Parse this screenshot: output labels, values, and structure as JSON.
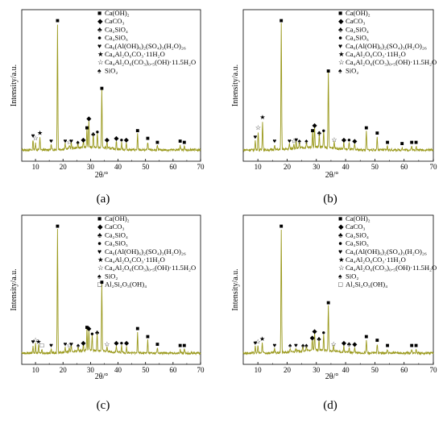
{
  "figure": {
    "panel_labels": [
      "(a)",
      "(b)",
      "(c)",
      "(d)"
    ]
  },
  "chart_data": [
    {
      "type": "line",
      "panel": "(a)",
      "xlabel": "2θ/°",
      "ylabel": "Intensity/a.u.",
      "xlim": [
        5,
        70
      ],
      "xticks": [
        10,
        20,
        30,
        40,
        50,
        60,
        70
      ],
      "ylim": [
        0,
        100
      ],
      "line_color": "#9b9a1e",
      "legend_position": "top-right",
      "legend": [
        {
          "symbol": "■",
          "label": "Ca(OH)₂"
        },
        {
          "symbol": "◆",
          "label": "CaCO₃"
        },
        {
          "symbol": "♣",
          "label": "Ca₂SiO₄"
        },
        {
          "symbol": "●",
          "label": "Ca₃SiO₅"
        },
        {
          "symbol": "♥",
          "label": "Ca₆(Al(OH)₆)₂(SO₄)₃(H₂O)₂₆"
        },
        {
          "symbol": "★",
          "label": "Ca₄Al₂O₆CO₃·11H₂O"
        },
        {
          "symbol": "☆",
          "label": "Ca₄Al₂O₆(CO₃)₀.₅(OH)·11.5H₂O"
        },
        {
          "symbol": "♠",
          "label": "SiO₂"
        }
      ],
      "peaks": [
        {
          "x": 9.1,
          "y": 8
        },
        {
          "x": 10.0,
          "y": 6
        },
        {
          "x": 11.6,
          "y": 10
        },
        {
          "x": 15.7,
          "y": 4
        },
        {
          "x": 18.0,
          "y": 95
        },
        {
          "x": 20.8,
          "y": 4
        },
        {
          "x": 22.3,
          "y": 3
        },
        {
          "x": 23.0,
          "y": 4
        },
        {
          "x": 25.4,
          "y": 3
        },
        {
          "x": 27.4,
          "y": 5
        },
        {
          "x": 28.7,
          "y": 14
        },
        {
          "x": 29.4,
          "y": 21
        },
        {
          "x": 31.0,
          "y": 9
        },
        {
          "x": 32.5,
          "y": 11
        },
        {
          "x": 34.1,
          "y": 44
        },
        {
          "x": 36.0,
          "y": 5
        },
        {
          "x": 39.4,
          "y": 6
        },
        {
          "x": 41.3,
          "y": 5
        },
        {
          "x": 43.0,
          "y": 5
        },
        {
          "x": 47.1,
          "y": 12
        },
        {
          "x": 50.8,
          "y": 6
        },
        {
          "x": 54.3,
          "y": 3
        },
        {
          "x": 62.6,
          "y": 4
        },
        {
          "x": 64.1,
          "y": 3
        }
      ],
      "markers": [
        {
          "x": 9.1,
          "symbol": "♥"
        },
        {
          "x": 10.0,
          "symbol": "☆"
        },
        {
          "x": 11.6,
          "symbol": "★"
        },
        {
          "x": 15.7,
          "symbol": "♥"
        },
        {
          "x": 18.0,
          "symbol": "■"
        },
        {
          "x": 20.8,
          "symbol": "♥"
        },
        {
          "x": 22.3,
          "symbol": "☆"
        },
        {
          "x": 23.0,
          "symbol": "♥"
        },
        {
          "x": 25.4,
          "symbol": "♠"
        },
        {
          "x": 27.4,
          "symbol": "◆"
        },
        {
          "x": 28.7,
          "symbol": "■"
        },
        {
          "x": 29.4,
          "symbol": "◆"
        },
        {
          "x": 31.0,
          "symbol": "♣"
        },
        {
          "x": 32.5,
          "symbol": "●"
        },
        {
          "x": 34.1,
          "symbol": "■"
        },
        {
          "x": 36.0,
          "symbol": "◆"
        },
        {
          "x": 39.4,
          "symbol": "◆"
        },
        {
          "x": 41.3,
          "symbol": "●"
        },
        {
          "x": 43.0,
          "symbol": "◆"
        },
        {
          "x": 47.1,
          "symbol": "■"
        },
        {
          "x": 50.8,
          "symbol": "■"
        },
        {
          "x": 54.3,
          "symbol": "■"
        },
        {
          "x": 62.6,
          "symbol": "■"
        },
        {
          "x": 64.1,
          "symbol": "■"
        }
      ]
    },
    {
      "type": "line",
      "panel": "(b)",
      "xlabel": "2θ/°",
      "ylabel": "Intensity/a.u.",
      "xlim": [
        5,
        70
      ],
      "xticks": [
        10,
        20,
        30,
        40,
        50,
        60,
        70
      ],
      "ylim": [
        0,
        100
      ],
      "line_color": "#9b9a1e",
      "legend_position": "top-right",
      "legend": [
        {
          "symbol": "■",
          "label": "Ca(OH)₂"
        },
        {
          "symbol": "◆",
          "label": "CaCO₃"
        },
        {
          "symbol": "♣",
          "label": "Ca₂SiO₄"
        },
        {
          "symbol": "●",
          "label": "Ca₃SiO₅"
        },
        {
          "symbol": "♥",
          "label": "Ca₆(Al(OH)₆)₂(SO₄)₃(H₂O)₂₆"
        },
        {
          "symbol": "★",
          "label": "Ca₄Al₂O₆CO₃·11H₂O"
        },
        {
          "symbol": "☆",
          "label": "Ca₄Al₂O₆(CO₃)₀.₅(OH)·11.5H₂O"
        },
        {
          "symbol": "♠",
          "label": "SiO₂"
        }
      ],
      "peaks": [
        {
          "x": 9.1,
          "y": 7
        },
        {
          "x": 10.1,
          "y": 14
        },
        {
          "x": 11.6,
          "y": 22
        },
        {
          "x": 15.7,
          "y": 4
        },
        {
          "x": 18.0,
          "y": 95
        },
        {
          "x": 20.8,
          "y": 4
        },
        {
          "x": 22.3,
          "y": 4
        },
        {
          "x": 23.1,
          "y": 5
        },
        {
          "x": 24.2,
          "y": 4
        },
        {
          "x": 26.6,
          "y": 4
        },
        {
          "x": 28.7,
          "y": 12
        },
        {
          "x": 29.4,
          "y": 16
        },
        {
          "x": 31.0,
          "y": 10
        },
        {
          "x": 32.5,
          "y": 12
        },
        {
          "x": 34.1,
          "y": 57
        },
        {
          "x": 36.1,
          "y": 5
        },
        {
          "x": 39.4,
          "y": 5
        },
        {
          "x": 41.2,
          "y": 5
        },
        {
          "x": 43.1,
          "y": 4
        },
        {
          "x": 47.1,
          "y": 14
        },
        {
          "x": 50.8,
          "y": 10
        },
        {
          "x": 54.3,
          "y": 3
        },
        {
          "x": 59.3,
          "y": 2
        },
        {
          "x": 62.6,
          "y": 3
        },
        {
          "x": 64.1,
          "y": 3
        }
      ],
      "markers": [
        {
          "x": 9.1,
          "symbol": "♥"
        },
        {
          "x": 10.1,
          "symbol": "☆"
        },
        {
          "x": 11.6,
          "symbol": "★"
        },
        {
          "x": 15.7,
          "symbol": "♥"
        },
        {
          "x": 18.0,
          "symbol": "■"
        },
        {
          "x": 20.8,
          "symbol": "♥"
        },
        {
          "x": 22.3,
          "symbol": "☆"
        },
        {
          "x": 23.1,
          "symbol": "♥"
        },
        {
          "x": 24.2,
          "symbol": "♠"
        },
        {
          "x": 26.6,
          "symbol": "♠"
        },
        {
          "x": 28.7,
          "symbol": "■"
        },
        {
          "x": 29.4,
          "symbol": "◆"
        },
        {
          "x": 31.0,
          "symbol": "♣"
        },
        {
          "x": 32.5,
          "symbol": "●"
        },
        {
          "x": 34.1,
          "symbol": "■"
        },
        {
          "x": 36.1,
          "symbol": "☆"
        },
        {
          "x": 39.4,
          "symbol": "◆"
        },
        {
          "x": 41.2,
          "symbol": "●"
        },
        {
          "x": 43.1,
          "symbol": "◆"
        },
        {
          "x": 47.1,
          "symbol": "■"
        },
        {
          "x": 50.8,
          "symbol": "■"
        },
        {
          "x": 54.3,
          "symbol": "■"
        },
        {
          "x": 59.3,
          "symbol": "■"
        },
        {
          "x": 62.6,
          "symbol": "■"
        },
        {
          "x": 64.1,
          "symbol": "■"
        }
      ]
    },
    {
      "type": "line",
      "panel": "(c)",
      "xlabel": "2θ/°",
      "ylabel": "Intensity/a.u.",
      "xlim": [
        5,
        70
      ],
      "xticks": [
        10,
        20,
        30,
        40,
        50,
        60,
        70
      ],
      "ylim": [
        0,
        100
      ],
      "line_color": "#9b9a1e",
      "legend_position": "top-right",
      "legend": [
        {
          "symbol": "■",
          "label": "Ca(OH)₂"
        },
        {
          "symbol": "◆",
          "label": "CaCO₃"
        },
        {
          "symbol": "♣",
          "label": "Ca₂SiO₄"
        },
        {
          "symbol": "●",
          "label": "Ca₃SiO₅"
        },
        {
          "symbol": "♥",
          "label": "Ca₆(Al(OH)₆)₂(SO₄)₃(H₂O)₂₆"
        },
        {
          "symbol": "★",
          "label": "Ca₄Al₂O₆CO₃·11H₂O"
        },
        {
          "symbol": "☆",
          "label": "Ca₄Al₂O₆(CO₃)₀.₅(OH)·11.5H₂O"
        },
        {
          "symbol": "♠",
          "label": "SiO₂"
        },
        {
          "symbol": "□",
          "label": "Al₂Si₂O₅(OH)₄"
        }
      ],
      "peaks": [
        {
          "x": 9.1,
          "y": 6
        },
        {
          "x": 10.0,
          "y": 7
        },
        {
          "x": 11.1,
          "y": 6
        },
        {
          "x": 12.3,
          "y": 3
        },
        {
          "x": 15.7,
          "y": 3
        },
        {
          "x": 18.0,
          "y": 95
        },
        {
          "x": 20.8,
          "y": 4
        },
        {
          "x": 22.3,
          "y": 3
        },
        {
          "x": 23.0,
          "y": 4
        },
        {
          "x": 25.5,
          "y": 3
        },
        {
          "x": 27.4,
          "y": 5
        },
        {
          "x": 28.7,
          "y": 17
        },
        {
          "x": 29.4,
          "y": 16
        },
        {
          "x": 30.6,
          "y": 12
        },
        {
          "x": 32.4,
          "y": 13
        },
        {
          "x": 34.1,
          "y": 52
        },
        {
          "x": 36.0,
          "y": 4
        },
        {
          "x": 39.4,
          "y": 5
        },
        {
          "x": 41.3,
          "y": 5
        },
        {
          "x": 43.1,
          "y": 5
        },
        {
          "x": 47.1,
          "y": 16
        },
        {
          "x": 50.8,
          "y": 10
        },
        {
          "x": 54.3,
          "y": 4
        },
        {
          "x": 62.6,
          "y": 3
        },
        {
          "x": 64.1,
          "y": 3
        }
      ],
      "markers": [
        {
          "x": 9.1,
          "symbol": "♥"
        },
        {
          "x": 10.0,
          "symbol": "☆"
        },
        {
          "x": 11.1,
          "symbol": "★"
        },
        {
          "x": 12.3,
          "symbol": "□"
        },
        {
          "x": 15.7,
          "symbol": "♥"
        },
        {
          "x": 18.0,
          "symbol": "■"
        },
        {
          "x": 20.8,
          "symbol": "♥"
        },
        {
          "x": 22.3,
          "symbol": "☆"
        },
        {
          "x": 23.0,
          "symbol": "♥"
        },
        {
          "x": 25.5,
          "symbol": "♠"
        },
        {
          "x": 27.4,
          "symbol": "◆"
        },
        {
          "x": 28.7,
          "symbol": "■"
        },
        {
          "x": 29.4,
          "symbol": "◆"
        },
        {
          "x": 30.6,
          "symbol": "●"
        },
        {
          "x": 32.4,
          "symbol": "♣"
        },
        {
          "x": 34.1,
          "symbol": "■"
        },
        {
          "x": 36.0,
          "symbol": "☆"
        },
        {
          "x": 39.4,
          "symbol": "◆"
        },
        {
          "x": 41.3,
          "symbol": "●"
        },
        {
          "x": 43.1,
          "symbol": "◆"
        },
        {
          "x": 47.1,
          "symbol": "■"
        },
        {
          "x": 50.8,
          "symbol": "■"
        },
        {
          "x": 54.3,
          "symbol": "■"
        },
        {
          "x": 62.6,
          "symbol": "■"
        },
        {
          "x": 64.1,
          "symbol": "■"
        }
      ]
    },
    {
      "type": "line",
      "panel": "(d)",
      "xlabel": "2θ/°",
      "ylabel": "Intensity/a.u.",
      "xlim": [
        5,
        70
      ],
      "xticks": [
        10,
        20,
        30,
        40,
        50,
        60,
        70
      ],
      "ylim": [
        0,
        100
      ],
      "line_color": "#9b9a1e",
      "legend_position": "top-right",
      "legend": [
        {
          "symbol": "■",
          "label": "Ca(OH)₂"
        },
        {
          "symbol": "◆",
          "label": "CaCO₃"
        },
        {
          "symbol": "♣",
          "label": "Ca₂SiO₄"
        },
        {
          "symbol": "●",
          "label": "Ca₃SiO₅"
        },
        {
          "symbol": "♥",
          "label": "Ca₆(Al(OH)₆)₂(SO₄)₃(H₂O)₂₆"
        },
        {
          "symbol": "★",
          "label": "Ca₄Al₂O₆CO₃·11H₂O"
        },
        {
          "symbol": "☆",
          "label": "Ca₄Al₂O₆(CO₃)₀.₅(OH)·11.5H₂O"
        },
        {
          "symbol": "♠",
          "label": "SiO₂"
        },
        {
          "symbol": "□",
          "label": "Al₂Si₂O₅(OH)₄"
        }
      ],
      "peaks": [
        {
          "x": 9.1,
          "y": 5
        },
        {
          "x": 10.0,
          "y": 6
        },
        {
          "x": 11.5,
          "y": 8
        },
        {
          "x": 15.7,
          "y": 3
        },
        {
          "x": 18.0,
          "y": 95
        },
        {
          "x": 21.0,
          "y": 3
        },
        {
          "x": 23.0,
          "y": 3
        },
        {
          "x": 25.4,
          "y": 3
        },
        {
          "x": 26.6,
          "y": 3
        },
        {
          "x": 28.6,
          "y": 9
        },
        {
          "x": 29.4,
          "y": 14
        },
        {
          "x": 30.9,
          "y": 8
        },
        {
          "x": 32.5,
          "y": 13
        },
        {
          "x": 34.1,
          "y": 36
        },
        {
          "x": 35.9,
          "y": 4
        },
        {
          "x": 39.4,
          "y": 5
        },
        {
          "x": 41.2,
          "y": 4
        },
        {
          "x": 43.1,
          "y": 4
        },
        {
          "x": 47.1,
          "y": 10
        },
        {
          "x": 50.8,
          "y": 7
        },
        {
          "x": 54.3,
          "y": 3
        },
        {
          "x": 62.6,
          "y": 3
        },
        {
          "x": 64.1,
          "y": 3
        }
      ],
      "markers": [
        {
          "x": 9.1,
          "symbol": "♥"
        },
        {
          "x": 10.0,
          "symbol": "☆"
        },
        {
          "x": 11.5,
          "symbol": "★"
        },
        {
          "x": 15.7,
          "symbol": "♥"
        },
        {
          "x": 18.0,
          "symbol": "■"
        },
        {
          "x": 21.0,
          "symbol": "♠"
        },
        {
          "x": 23.0,
          "symbol": "♥"
        },
        {
          "x": 25.4,
          "symbol": "♠"
        },
        {
          "x": 26.6,
          "symbol": "♠"
        },
        {
          "x": 28.6,
          "symbol": "◆"
        },
        {
          "x": 29.4,
          "symbol": "◆"
        },
        {
          "x": 30.9,
          "symbol": "♣"
        },
        {
          "x": 32.5,
          "symbol": "●"
        },
        {
          "x": 34.1,
          "symbol": "■"
        },
        {
          "x": 35.9,
          "symbol": "☆"
        },
        {
          "x": 39.4,
          "symbol": "◆"
        },
        {
          "x": 41.2,
          "symbol": "♣"
        },
        {
          "x": 43.1,
          "symbol": "◆"
        },
        {
          "x": 47.1,
          "symbol": "■"
        },
        {
          "x": 50.8,
          "symbol": "■"
        },
        {
          "x": 54.3,
          "symbol": "■"
        },
        {
          "x": 62.6,
          "symbol": "■"
        },
        {
          "x": 64.1,
          "symbol": "■"
        }
      ]
    }
  ]
}
